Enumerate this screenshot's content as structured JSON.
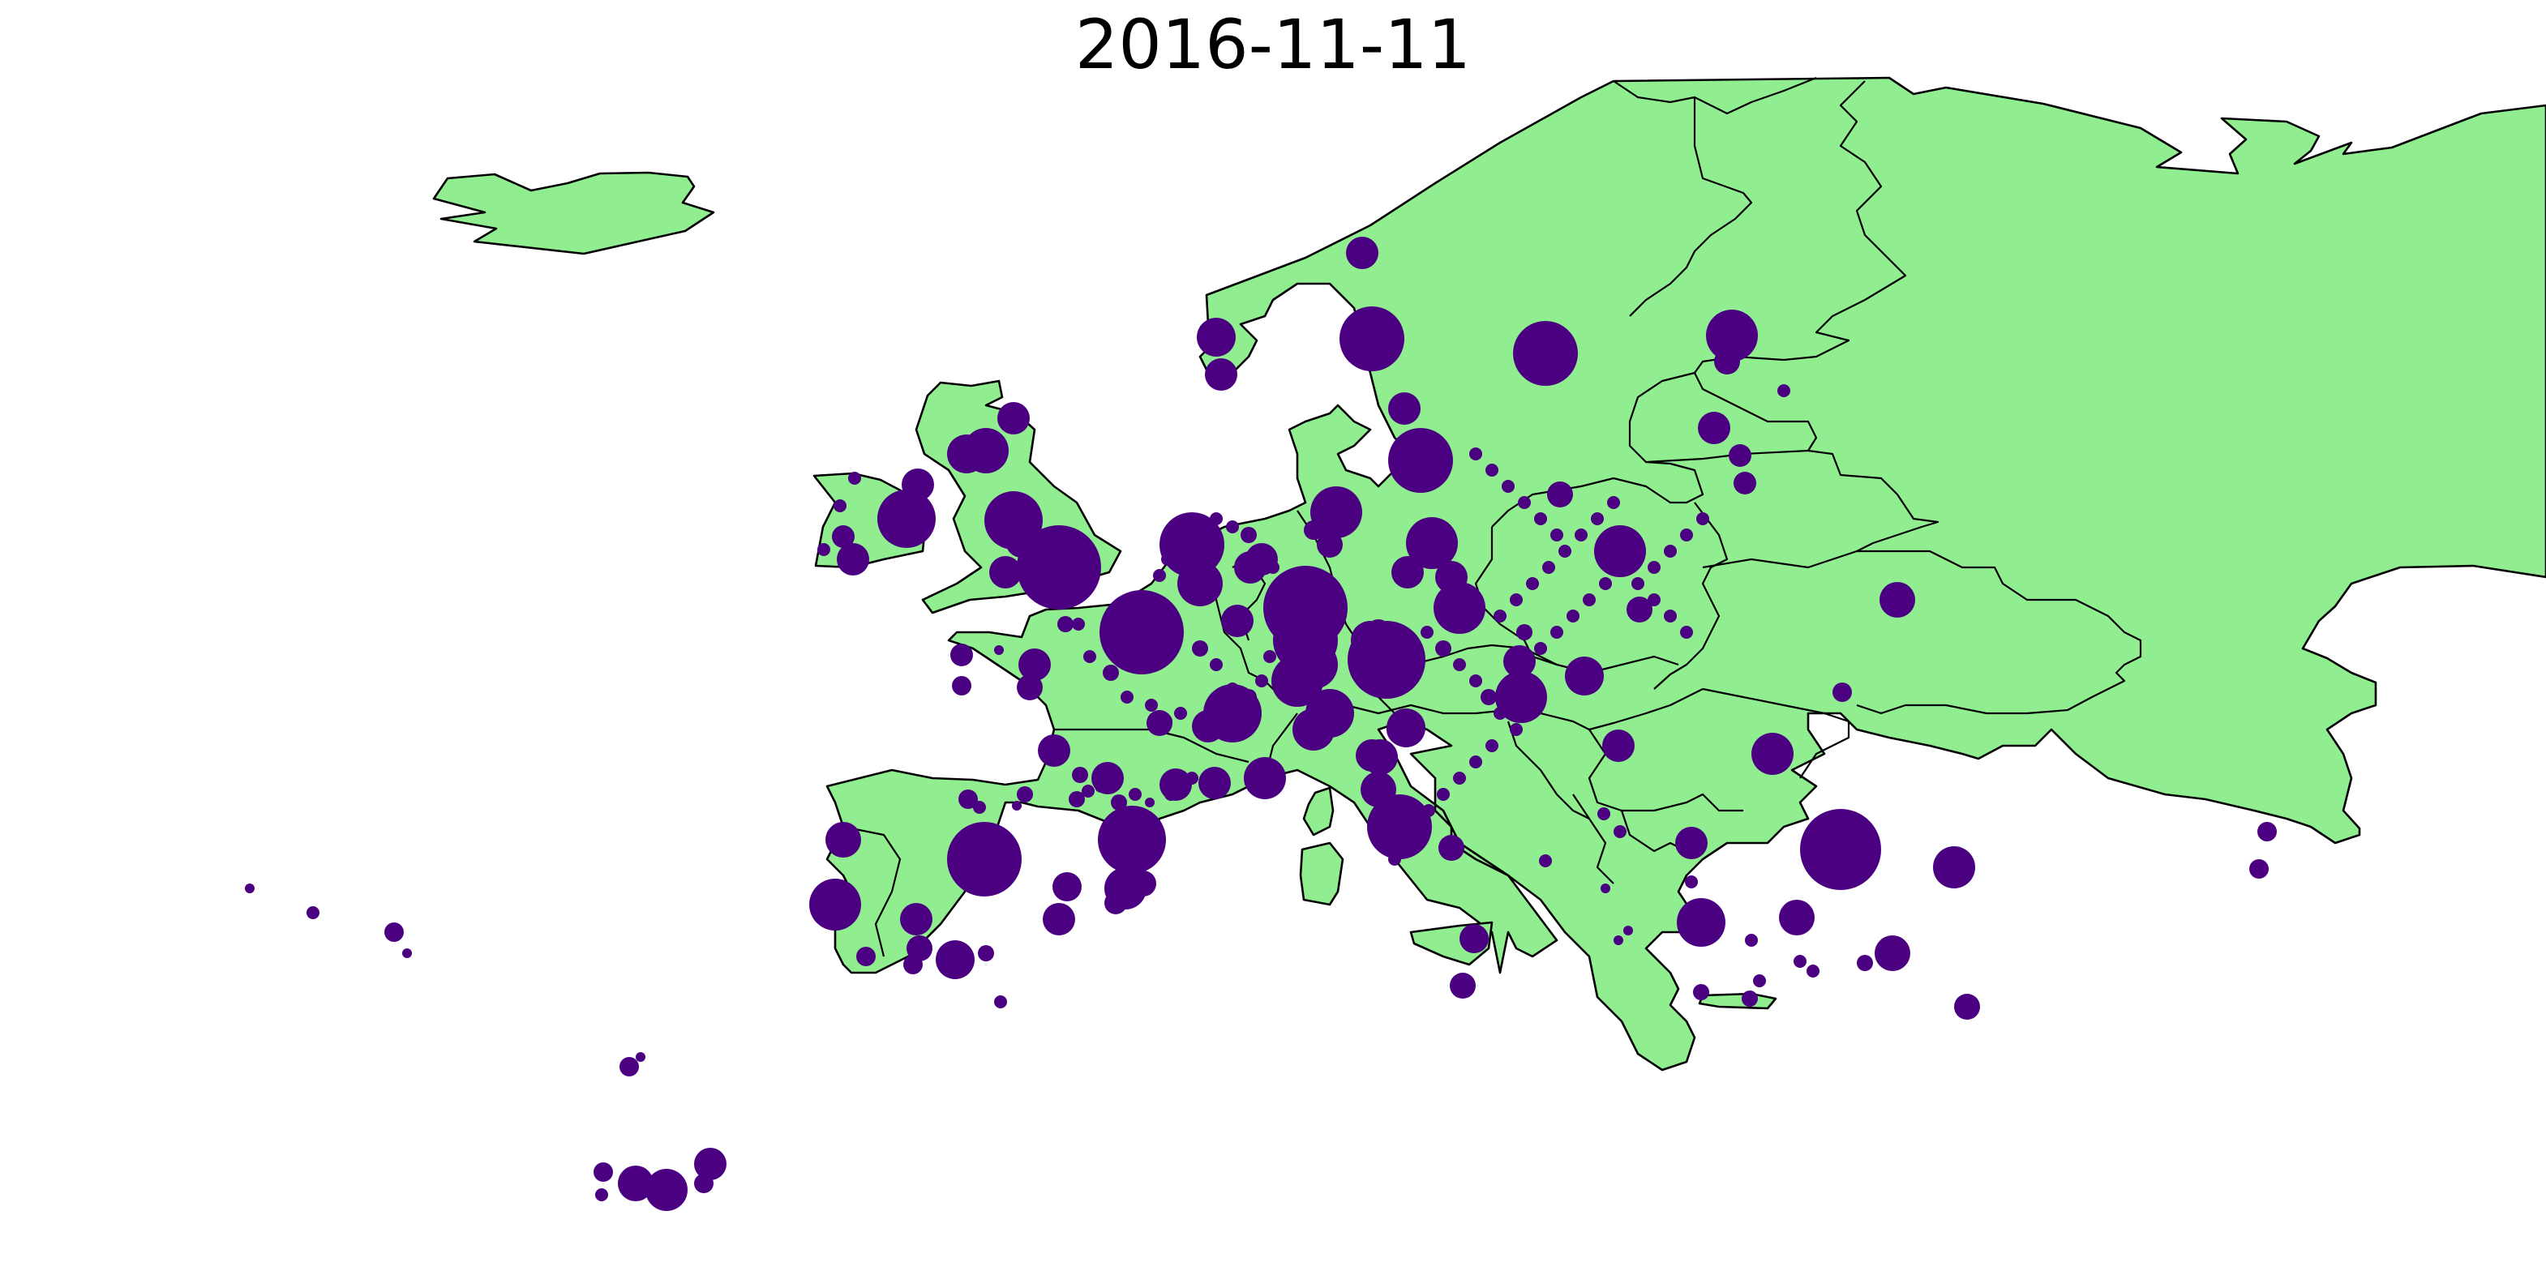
{
  "title": "2016-11-11",
  "colors": {
    "land": "#90ee90",
    "border": "#000000",
    "marker": "#4b0082",
    "background": "#ffffff"
  },
  "legend": "none"
}
